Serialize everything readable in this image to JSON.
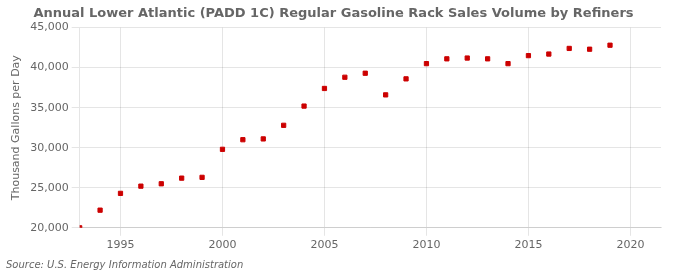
{
  "chart_data": {
    "type": "scatter",
    "title": "Annual Lower Atlantic (PADD 1C) Regular Gasoline Rack Sales Volume by Refiners",
    "ylabel": "Thousand Gallons per Day",
    "source": "Source: U.S. Energy Information Administration",
    "x": [
      1993,
      1994,
      1995,
      1996,
      1997,
      1998,
      1999,
      2000,
      2001,
      2002,
      2003,
      2004,
      2005,
      2006,
      2007,
      2008,
      2009,
      2010,
      2011,
      2012,
      2013,
      2014,
      2015,
      2016,
      2017,
      2018,
      2019
    ],
    "values": [
      20000,
      22200,
      24300,
      25200,
      25500,
      26200,
      26300,
      29800,
      31000,
      31100,
      32800,
      35200,
      37400,
      38800,
      39300,
      36600,
      38600,
      40500,
      41100,
      41200,
      41100,
      40500,
      41500,
      41700,
      42400,
      42300,
      42800
    ],
    "color": "#cc0000",
    "marker": "square",
    "xlim": [
      1993.0,
      2021.5
    ],
    "ylim": [
      20000,
      45000
    ],
    "xticks": [
      1995,
      2000,
      2005,
      2010,
      2015,
      2020
    ],
    "yticks": [
      {
        "value": 20000,
        "label": "20,000"
      },
      {
        "value": 25000,
        "label": "25,000"
      },
      {
        "value": 30000,
        "label": "30,000"
      },
      {
        "value": 35000,
        "label": "35,000"
      },
      {
        "value": 40000,
        "label": "40,000"
      },
      {
        "value": 45000,
        "label": "45,000"
      }
    ],
    "grid": true
  }
}
